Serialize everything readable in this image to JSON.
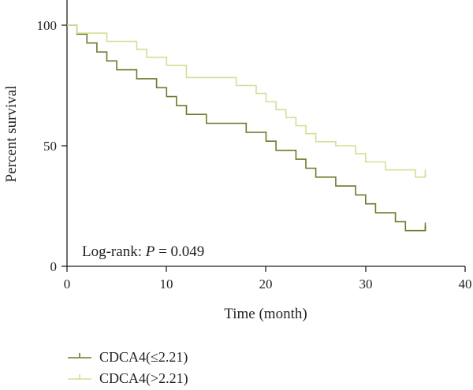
{
  "chart_data": {
    "type": "line",
    "step": true,
    "xlabel": "Time (month)",
    "ylabel": "Percent survival",
    "xlim": [
      0,
      40
    ],
    "ylim": [
      0,
      100
    ],
    "xticks": [
      "0",
      "10",
      "20",
      "30",
      "40"
    ],
    "yticks": [
      "0",
      "50",
      "100"
    ],
    "grid": false,
    "annotation": {
      "prefix": "Log-rank: ",
      "p_symbol": "P",
      "suffix": " = 0.049"
    },
    "legend_position": "bottom-left",
    "series": [
      {
        "name": "CDCA4(≤2.21)",
        "color": "#6b7a2a",
        "x": [
          0,
          1,
          2,
          3,
          4,
          5,
          7,
          9,
          10,
          11,
          12,
          14,
          18,
          20,
          21,
          23,
          24,
          25,
          27,
          29,
          30,
          31,
          33,
          34,
          36
        ],
        "y": [
          100,
          96.3,
          92.6,
          88.9,
          85.2,
          81.5,
          77.8,
          74.1,
          70.4,
          66.7,
          63,
          59.3,
          55.6,
          51.9,
          48.1,
          44.4,
          40.7,
          37,
          33.3,
          29.6,
          25.9,
          22.2,
          18.5,
          14.8,
          16.8
        ],
        "censor_x": [
          36
        ],
        "censor_y": [
          16.8
        ]
      },
      {
        "name": "CDCA4(>2.21)",
        "color": "#d2df94",
        "x": [
          0,
          1,
          4,
          7,
          8,
          10,
          12,
          17,
          19,
          20,
          21,
          22,
          23,
          24,
          25,
          27,
          29,
          30,
          32,
          35,
          36
        ],
        "y": [
          100,
          96.7,
          93.3,
          90,
          86.7,
          83.3,
          78.3,
          75,
          71.7,
          68.3,
          65,
          61.7,
          58.3,
          55,
          51.7,
          50,
          46.7,
          43.3,
          40,
          37,
          38.8
        ],
        "censor_x": [
          36
        ],
        "censor_y": [
          38.8
        ]
      }
    ]
  }
}
